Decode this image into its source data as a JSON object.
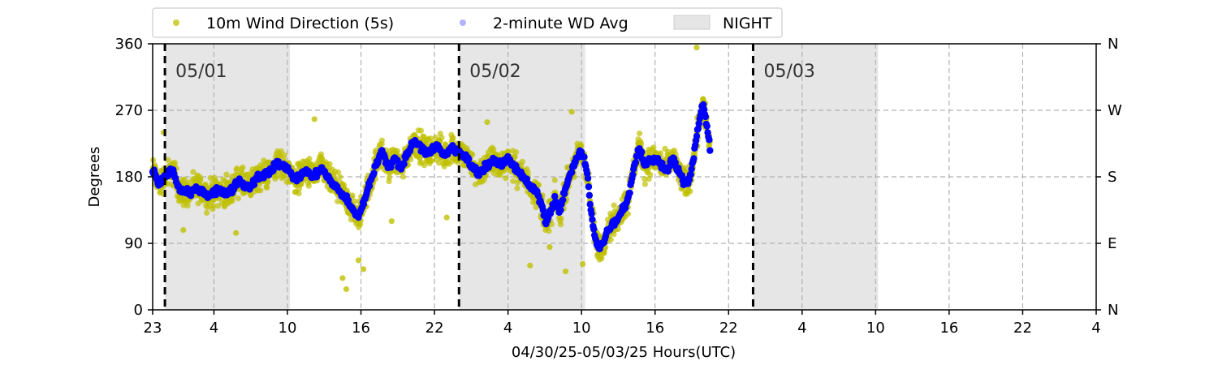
{
  "chart_data": {
    "type": "scatter",
    "title": "",
    "xlabel": "04/30/25-05/03/25  Hours(UTC)",
    "ylabel": "Degrees",
    "xlim": [
      0,
      77
    ],
    "ylim": [
      0,
      360
    ],
    "x_ticks": [
      {
        "hours": 0,
        "label": "23"
      },
      {
        "hours": 5,
        "label": "4"
      },
      {
        "hours": 11,
        "label": "10"
      },
      {
        "hours": 17,
        "label": "16"
      },
      {
        "hours": 23,
        "label": "22"
      },
      {
        "hours": 29,
        "label": "4"
      },
      {
        "hours": 35,
        "label": "10"
      },
      {
        "hours": 41,
        "label": "16"
      },
      {
        "hours": 47,
        "label": "22"
      },
      {
        "hours": 53,
        "label": "4"
      },
      {
        "hours": 59,
        "label": "10"
      },
      {
        "hours": 65,
        "label": "16"
      },
      {
        "hours": 71,
        "label": "22"
      },
      {
        "hours": 77,
        "label": "4"
      }
    ],
    "y_ticks": [
      0,
      90,
      180,
      270,
      360
    ],
    "y_ticks_right": [
      {
        "value": 0,
        "label": "N"
      },
      {
        "value": 90,
        "label": "E"
      },
      {
        "value": 180,
        "label": "S"
      },
      {
        "value": 270,
        "label": "W"
      },
      {
        "value": 360,
        "label": "N"
      }
    ],
    "grid": true,
    "legend_position": "top-left",
    "legend": [
      {
        "label": "10m Wind Direction (5s)",
        "marker": "dot",
        "color": "#bfbf00"
      },
      {
        "label": "2-minute WD Avg",
        "marker": "dot",
        "color": "#0000ff"
      },
      {
        "label": "NIGHT",
        "marker": "patch",
        "color": "#e6e6e6"
      }
    ],
    "night_periods": [
      [
        1,
        11.2
      ],
      [
        25,
        35.3
      ],
      [
        49,
        59.2
      ]
    ],
    "date_markers": [
      {
        "hours": 1,
        "label": "05/01"
      },
      {
        "hours": 25,
        "label": "05/02"
      },
      {
        "hours": 49,
        "label": "05/03"
      }
    ],
    "series": [
      {
        "name": "10m Wind Direction (5s)",
        "color": "#bfbf00",
        "spread": 28,
        "outliers": [
          [
            15.8,
            28
          ],
          [
            15.5,
            43
          ],
          [
            17.2,
            55
          ],
          [
            16.8,
            67
          ],
          [
            19.5,
            120
          ],
          [
            24,
            125
          ],
          [
            33.7,
            52
          ],
          [
            35.1,
            62
          ],
          [
            30.8,
            60
          ],
          [
            32.4,
            85
          ],
          [
            44.4,
            355
          ],
          [
            0.9,
            240
          ],
          [
            2.5,
            108
          ],
          [
            6.8,
            104
          ],
          [
            13.2,
            258
          ],
          [
            27.3,
            254
          ],
          [
            34.2,
            268
          ]
        ]
      },
      {
        "name": "2-minute WD Avg",
        "color": "#0000ff",
        "points": [
          [
            0,
            190
          ],
          [
            0.5,
            170
          ],
          [
            1,
            180
          ],
          [
            1.6,
            190
          ],
          [
            2.2,
            162
          ],
          [
            3,
            158
          ],
          [
            3.8,
            165
          ],
          [
            4.5,
            155
          ],
          [
            5.3,
            162
          ],
          [
            6.2,
            158
          ],
          [
            7,
            175
          ],
          [
            7.8,
            165
          ],
          [
            8.6,
            180
          ],
          [
            9.4,
            185
          ],
          [
            10.2,
            198
          ],
          [
            11,
            192
          ],
          [
            11.6,
            175
          ],
          [
            12.4,
            188
          ],
          [
            13.2,
            180
          ],
          [
            13.8,
            192
          ],
          [
            14.6,
            172
          ],
          [
            15.2,
            162
          ],
          [
            15.8,
            150
          ],
          [
            16.3,
            135
          ],
          [
            16.8,
            125
          ],
          [
            17.3,
            150
          ],
          [
            17.8,
            175
          ],
          [
            18.3,
            200
          ],
          [
            18.7,
            215
          ],
          [
            19.2,
            192
          ],
          [
            19.8,
            205
          ],
          [
            20.3,
            192
          ],
          [
            20.8,
            212
          ],
          [
            21.4,
            230
          ],
          [
            22,
            218
          ],
          [
            22.6,
            212
          ],
          [
            23.2,
            222
          ],
          [
            23.8,
            208
          ],
          [
            24.4,
            220
          ],
          [
            25,
            212
          ],
          [
            25.5,
            208
          ],
          [
            26,
            195
          ],
          [
            26.6,
            185
          ],
          [
            27.2,
            195
          ],
          [
            27.8,
            202
          ],
          [
            28.4,
            195
          ],
          [
            29,
            205
          ],
          [
            29.6,
            192
          ],
          [
            30.2,
            182
          ],
          [
            30.7,
            170
          ],
          [
            31.3,
            160
          ],
          [
            31.8,
            140
          ],
          [
            32.1,
            115
          ],
          [
            32.4,
            130
          ],
          [
            32.8,
            150
          ],
          [
            33.2,
            130
          ],
          [
            33.6,
            160
          ],
          [
            34,
            180
          ],
          [
            34.5,
            200
          ],
          [
            34.9,
            215
          ],
          [
            35.2,
            205
          ],
          [
            35.5,
            180
          ],
          [
            35.8,
            130
          ],
          [
            36.1,
            100
          ],
          [
            36.4,
            82
          ],
          [
            36.8,
            92
          ],
          [
            37.2,
            110
          ],
          [
            37.8,
            120
          ],
          [
            38.3,
            135
          ],
          [
            38.8,
            150
          ],
          [
            39.3,
            195
          ],
          [
            39.7,
            220
          ],
          [
            40.2,
            195
          ],
          [
            40.8,
            205
          ],
          [
            41.3,
            200
          ],
          [
            41.9,
            190
          ],
          [
            42.5,
            205
          ],
          [
            43.1,
            180
          ],
          [
            43.5,
            170
          ],
          [
            43.8,
            175
          ],
          [
            44,
            190
          ],
          [
            44.3,
            225
          ],
          [
            44.6,
            255
          ],
          [
            44.9,
            280
          ],
          [
            45.1,
            262
          ],
          [
            45.3,
            240
          ],
          [
            45.5,
            215
          ]
        ]
      }
    ]
  }
}
